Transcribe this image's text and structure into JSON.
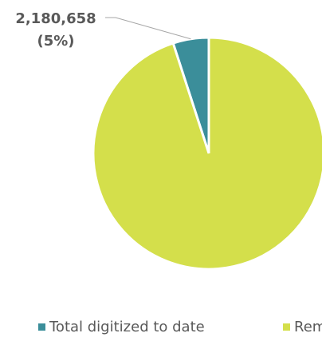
{
  "chart_data": {
    "type": "pie",
    "categories": [
      "Total digitized to date",
      "Remaining"
    ],
    "values": [
      5,
      95
    ],
    "value_labels": [
      "2,180,658 (5%)",
      null
    ],
    "colors": [
      "#3b8e9a",
      "#d4df4b"
    ],
    "legend": "bottom"
  }
}
